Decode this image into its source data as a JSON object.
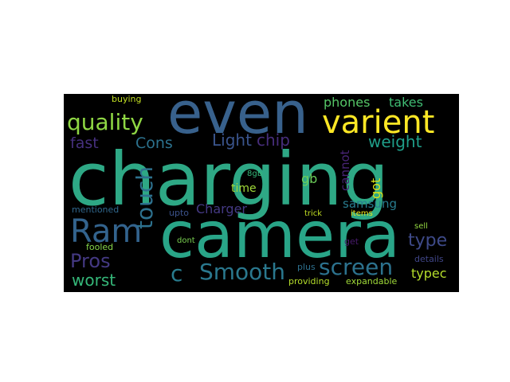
{
  "word_cloud": {
    "background": "#000000",
    "words": [
      {
        "id": "charging",
        "text": "charging",
        "color": "#2ea885"
      },
      {
        "id": "camera",
        "text": "camera",
        "color": "#29a588"
      },
      {
        "id": "even",
        "text": "even",
        "color": "#38618c"
      },
      {
        "id": "varient",
        "text": "varient",
        "color": "#fde725"
      },
      {
        "id": "quality",
        "text": "quality",
        "color": "#8fd744"
      },
      {
        "id": "phones",
        "text": "phones",
        "color": "#55c667"
      },
      {
        "id": "takes",
        "text": "takes",
        "color": "#3fbc73"
      },
      {
        "id": "buying",
        "text": "buying",
        "color": "#c2df23"
      },
      {
        "id": "fast",
        "text": "fast",
        "color": "#46307e"
      },
      {
        "id": "cons",
        "text": "Cons",
        "color": "#2c728e"
      },
      {
        "id": "light",
        "text": "Light",
        "color": "#3a548c"
      },
      {
        "id": "chip",
        "text": "chip",
        "color": "#472d7b"
      },
      {
        "id": "weight",
        "text": "weight",
        "color": "#1f9e89"
      },
      {
        "id": "ram",
        "text": "Ram",
        "color": "#33638d"
      },
      {
        "id": "touch",
        "text": "touch",
        "color": "#2d718e"
      },
      {
        "id": "pros",
        "text": "Pros",
        "color": "#443983"
      },
      {
        "id": "worst",
        "text": "worst",
        "color": "#35b779"
      },
      {
        "id": "c",
        "text": "c",
        "color": "#287c8e"
      },
      {
        "id": "smooth",
        "text": "Smooth",
        "color": "#2a788e"
      },
      {
        "id": "screen",
        "text": "screen",
        "color": "#2c728e"
      },
      {
        "id": "type",
        "text": "type",
        "color": "#3e4a89"
      },
      {
        "id": "typec",
        "text": "typec",
        "color": "#b5de2b"
      },
      {
        "id": "time",
        "text": "time",
        "color": "#a0da39"
      },
      {
        "id": "charger",
        "text": "Charger",
        "color": "#443983"
      },
      {
        "id": "gb",
        "text": "gb",
        "color": "#6ccd5a"
      },
      {
        "id": "8gb",
        "text": "8gb",
        "color": "#35b779"
      },
      {
        "id": "cannot",
        "text": "cannot",
        "color": "#482475"
      },
      {
        "id": "got",
        "text": "got",
        "color": "#d8e219"
      },
      {
        "id": "samsung",
        "text": "samsung",
        "color": "#287c8e"
      },
      {
        "id": "mentioned",
        "text": "mentioned",
        "color": "#31688e"
      },
      {
        "id": "upto",
        "text": "upto",
        "color": "#3b528b"
      },
      {
        "id": "trick",
        "text": "trick",
        "color": "#c2df23"
      },
      {
        "id": "items",
        "text": "items",
        "color": "#eae51a"
      },
      {
        "id": "sell",
        "text": "sell",
        "color": "#93d741"
      },
      {
        "id": "fooled",
        "text": "fooled",
        "color": "#86d549"
      },
      {
        "id": "dont",
        "text": "dont",
        "color": "#7ad151"
      },
      {
        "id": "get",
        "text": "get",
        "color": "#481a6c"
      },
      {
        "id": "plus",
        "text": "plus",
        "color": "#2d708e"
      },
      {
        "id": "details",
        "text": "details",
        "color": "#404688"
      },
      {
        "id": "providing",
        "text": "providing",
        "color": "#b5de2b"
      },
      {
        "id": "expandable",
        "text": "expandable",
        "color": "#a0da39"
      }
    ]
  }
}
